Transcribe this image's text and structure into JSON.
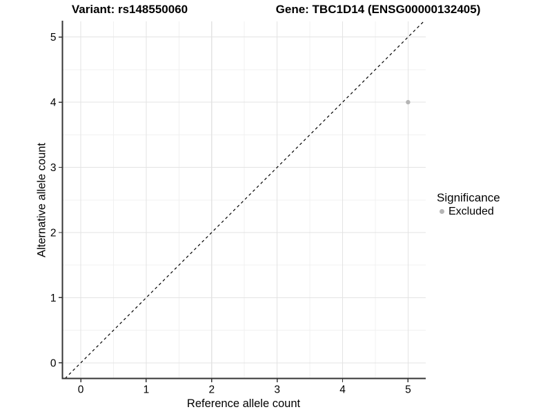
{
  "chart_data": {
    "type": "scatter",
    "titles": {
      "left": "Variant: rs148550060",
      "right": "Gene: TBC1D14 (ENSG00000132405)"
    },
    "xlabel": "Reference allele count",
    "ylabel": "Alternative allele count",
    "x_ticks": [
      0,
      1,
      2,
      3,
      4,
      5
    ],
    "y_ticks": [
      0,
      1,
      2,
      3,
      4,
      5
    ],
    "x_minor": [
      0.5,
      1.5,
      2.5,
      3.5,
      4.5
    ],
    "y_minor": [
      0.5,
      1.5,
      2.5,
      3.5,
      4.5
    ],
    "xlim": [
      -0.28,
      5.27
    ],
    "ylim": [
      -0.24,
      5.24
    ],
    "grid": true,
    "points": [
      {
        "x": 5,
        "y": 4,
        "series": "Excluded",
        "color": "#b5b5b5",
        "radius": 3.2
      }
    ],
    "reference_line": {
      "slope": 1,
      "intercept": 0,
      "style": "dashed",
      "color": "#000000"
    },
    "legend": {
      "title": "Significance",
      "position": "right",
      "items": [
        {
          "label": "Excluded",
          "color": "#b5b5b5"
        }
      ]
    },
    "style": {
      "background": "#ffffff",
      "grid_major": "#e3e3e3",
      "grid_minor": "#f0f0f0",
      "axis_color": "#333333",
      "tick_label_color": "#000000"
    }
  }
}
